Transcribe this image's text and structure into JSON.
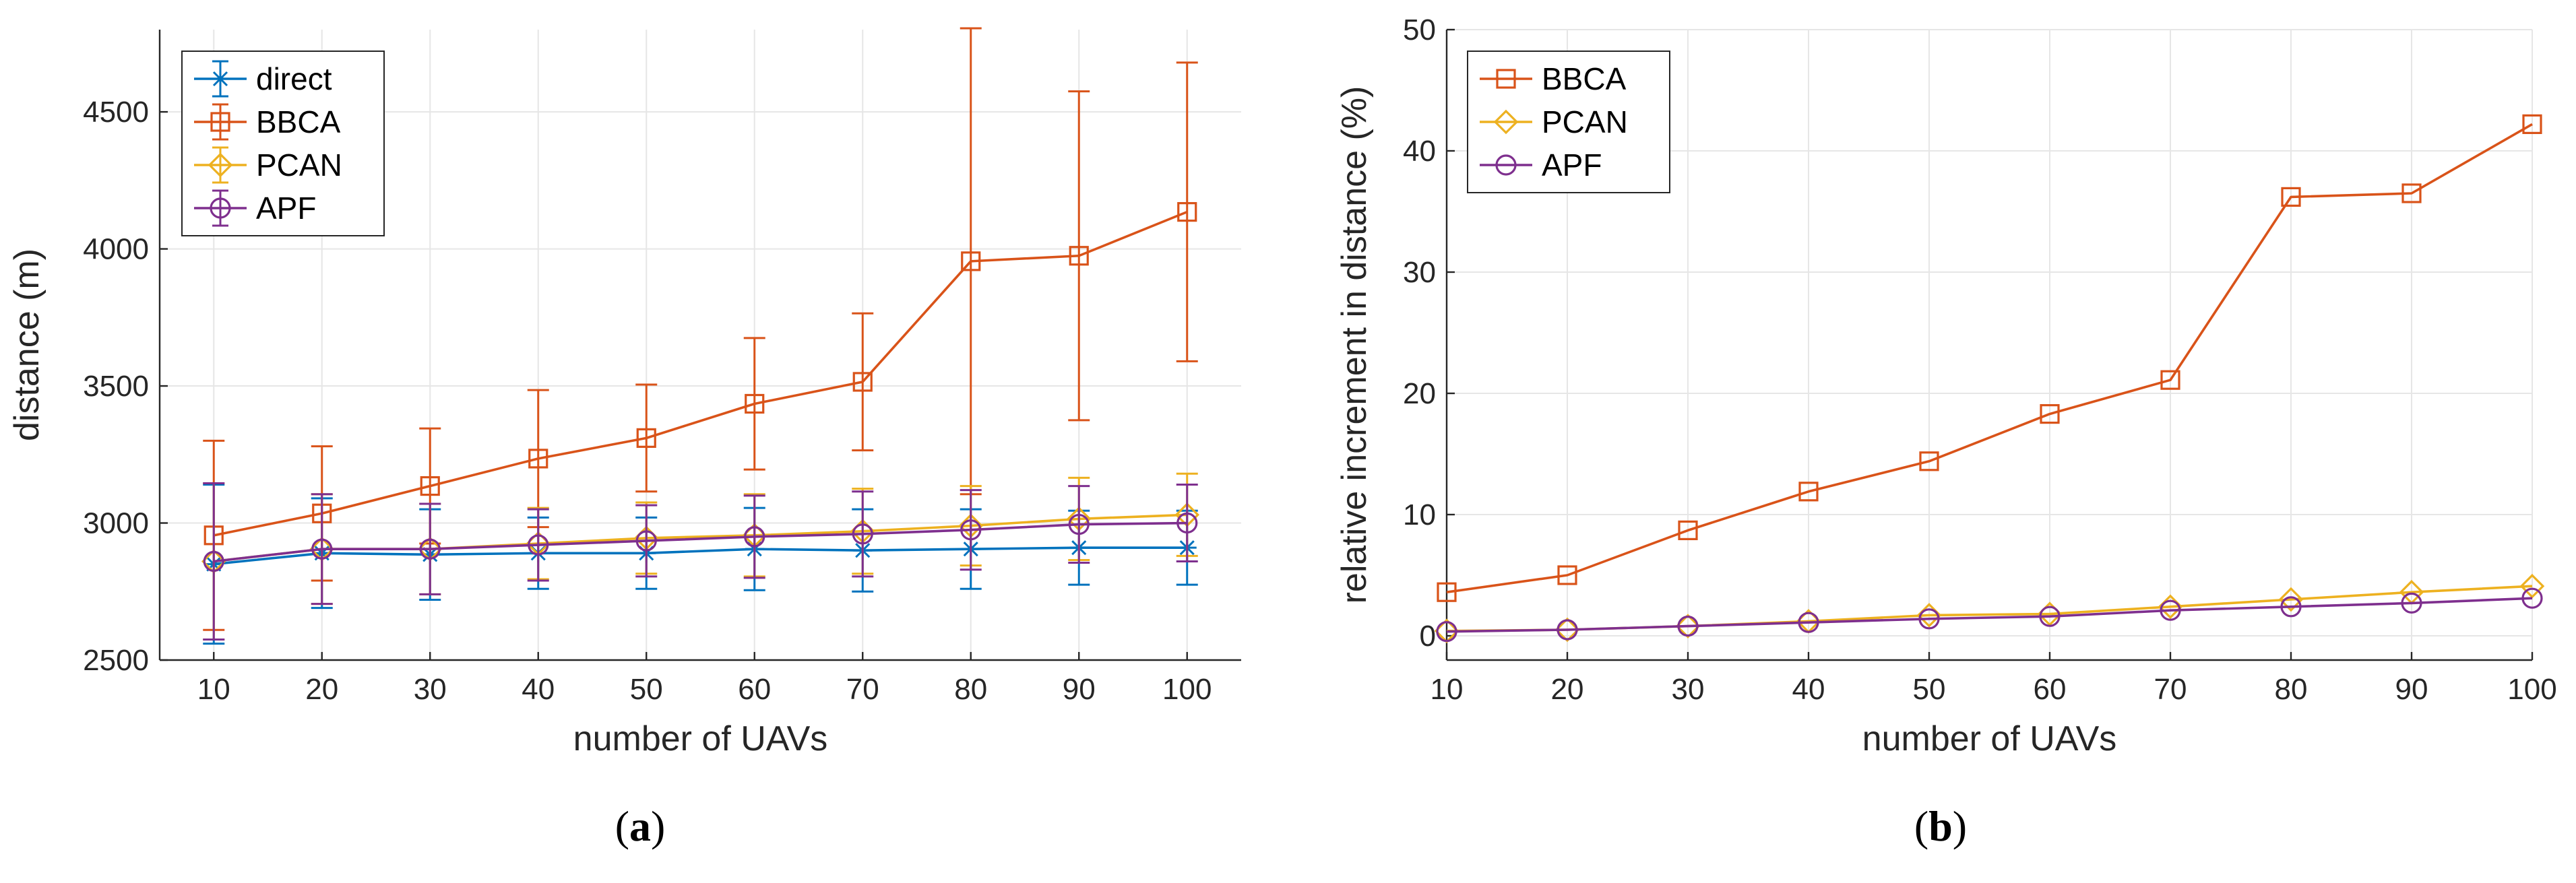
{
  "chart_data": [
    {
      "type": "line",
      "panel": "a",
      "caption": "(a)",
      "caption_letter": "a",
      "xlabel": "number of UAVs",
      "ylabel": "distance (m)",
      "x": [
        10,
        20,
        30,
        40,
        50,
        60,
        70,
        80,
        90,
        100
      ],
      "xlim": [
        5,
        105
      ],
      "ylim": [
        2500,
        4800
      ],
      "xticks": [
        "10",
        "20",
        "30",
        "40",
        "50",
        "60",
        "70",
        "80",
        "90",
        "100"
      ],
      "yticks": [
        "2500",
        "3000",
        "3500",
        "4000",
        "4500"
      ],
      "ytick_values": [
        2500,
        3000,
        3500,
        4000,
        4500
      ],
      "grid": true,
      "legend_position": "top-left",
      "series": [
        {
          "name": "direct",
          "color": "#0072BD",
          "marker": "asterisk",
          "values": [
            2850,
            2890,
            2885,
            2890,
            2890,
            2905,
            2900,
            2905,
            2910,
            2910
          ],
          "errors": [
            290,
            200,
            165,
            130,
            130,
            150,
            150,
            145,
            135,
            135
          ]
        },
        {
          "name": "BBCA",
          "color": "#D95319",
          "marker": "square",
          "values": [
            2955,
            3035,
            3135,
            3235,
            3310,
            3435,
            3515,
            3955,
            3975,
            4135
          ],
          "errors": [
            345,
            245,
            210,
            250,
            195,
            240,
            250,
            850,
            600,
            545
          ]
        },
        {
          "name": "PCAN",
          "color": "#EDB120",
          "marker": "diamond",
          "values": [
            2860,
            2905,
            2905,
            2925,
            2945,
            2955,
            2970,
            2990,
            3015,
            3030
          ],
          "errors": [
            285,
            200,
            165,
            130,
            130,
            150,
            155,
            145,
            150,
            150
          ]
        },
        {
          "name": "APF",
          "color": "#7E2F8E",
          "marker": "circle",
          "values": [
            2860,
            2905,
            2905,
            2920,
            2935,
            2950,
            2960,
            2975,
            2995,
            3000
          ],
          "errors": [
            285,
            200,
            165,
            130,
            130,
            150,
            155,
            145,
            140,
            140
          ]
        }
      ]
    },
    {
      "type": "line",
      "panel": "b",
      "caption": "(b)",
      "caption_letter": "b",
      "xlabel": "number of UAVs",
      "ylabel": "relative increment in distance (%)",
      "x": [
        10,
        20,
        30,
        40,
        50,
        60,
        70,
        80,
        90,
        100
      ],
      "xlim": [
        10,
        100
      ],
      "ylim": [
        -2,
        50
      ],
      "xticks": [
        "10",
        "20",
        "30",
        "40",
        "50",
        "60",
        "70",
        "80",
        "90",
        "100"
      ],
      "yticks": [
        "0",
        "10",
        "20",
        "30",
        "40",
        "50"
      ],
      "ytick_values": [
        0,
        10,
        20,
        30,
        40,
        50
      ],
      "grid": true,
      "legend_position": "top-left",
      "series": [
        {
          "name": "BBCA",
          "color": "#D95319",
          "marker": "square",
          "values": [
            3.6,
            5.0,
            8.7,
            11.9,
            14.4,
            18.3,
            21.1,
            36.2,
            36.5,
            42.2
          ]
        },
        {
          "name": "PCAN",
          "color": "#EDB120",
          "marker": "diamond",
          "values": [
            0.4,
            0.5,
            0.8,
            1.2,
            1.7,
            1.8,
            2.4,
            3.0,
            3.6,
            4.1
          ]
        },
        {
          "name": "APF",
          "color": "#7E2F8E",
          "marker": "circle",
          "values": [
            0.35,
            0.5,
            0.8,
            1.1,
            1.4,
            1.6,
            2.1,
            2.4,
            2.7,
            3.1
          ]
        }
      ]
    }
  ]
}
